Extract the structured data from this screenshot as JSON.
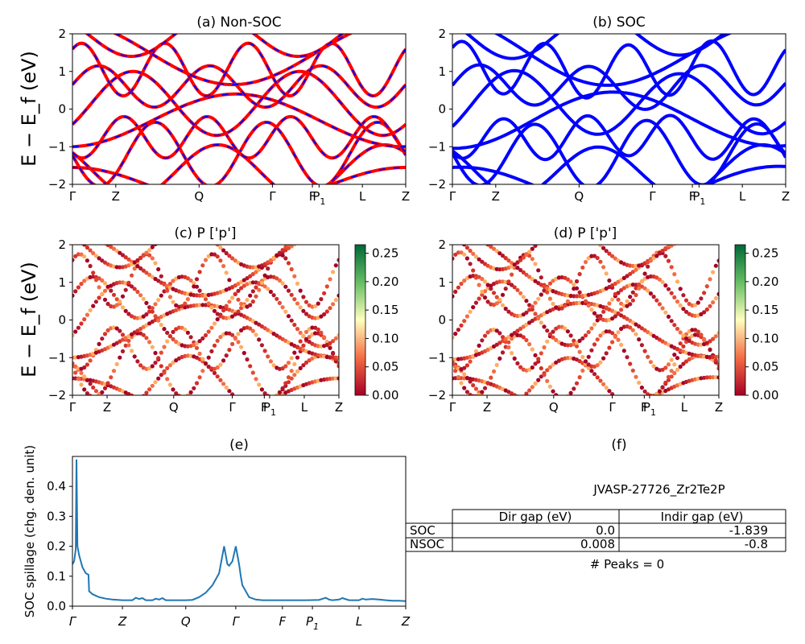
{
  "panels": {
    "a": {
      "title": "(a) Non-SOC",
      "ylabel": "E − E_f (eV)"
    },
    "b": {
      "title": "(b) SOC"
    },
    "c": {
      "title": "(c)  P ['p']",
      "ylabel": "E − E_f (eV)"
    },
    "d": {
      "title": "(d) P ['p']"
    },
    "e": {
      "title": "(e)",
      "ylabel": "SOC spillage (chg. den. unit)"
    },
    "f": {
      "title": "(f)"
    }
  },
  "kpath_labels": [
    "Γ",
    "Z",
    "Q",
    "Γ",
    "F",
    "P1",
    "L",
    "Z"
  ],
  "kpath_labels_e": [
    "Γ",
    "Z",
    "Q",
    "Γ",
    "F",
    "P1",
    "L",
    "Z"
  ],
  "band_yticks": [
    "−2",
    "−1",
    "0",
    "1",
    "2"
  ],
  "colorbar_ticks": [
    "0.00",
    "0.05",
    "0.10",
    "0.15",
    "0.20",
    "0.25"
  ],
  "spillage_yticks": [
    "0.0",
    "0.1",
    "0.2",
    "0.3",
    "0.4"
  ],
  "table": {
    "title": "JVASP-27726_Zr2Te2P",
    "headers": [
      "",
      "Dir gap (eV)",
      "Indir gap (eV)"
    ],
    "rows": [
      [
        "SOC",
        "0.0",
        "-1.839"
      ],
      [
        "NSOC",
        "0.008",
        "-0.8"
      ]
    ],
    "note": "# Peaks = 0"
  },
  "colors": {
    "nonsoc_red": "#ff0000",
    "soc_blue": "#0000ff",
    "spillage": "#1f77b4"
  },
  "chart_data": [
    {
      "type": "line",
      "panel": "e",
      "title": "(e)",
      "ylabel": "SOC spillage (chg. den. unit)",
      "ylim": [
        0,
        0.5
      ],
      "x_ticks": [
        "Γ",
        "Z",
        "Q",
        "Γ",
        "F",
        "P1",
        "L",
        "Z"
      ],
      "x_tick_positions": [
        0,
        0.15,
        0.34,
        0.49,
        0.63,
        0.72,
        0.86,
        1.0
      ],
      "series": [
        {
          "x": [
            0,
            0.005,
            0.01,
            0.012,
            0.015,
            0.02,
            0.03,
            0.04,
            0.048,
            0.05,
            0.06,
            0.08,
            0.1,
            0.12,
            0.15,
            0.18,
            0.19,
            0.2,
            0.21,
            0.22,
            0.23,
            0.24,
            0.25,
            0.26,
            0.27,
            0.28,
            0.3,
            0.32,
            0.34,
            0.36,
            0.38,
            0.4,
            0.42,
            0.44,
            0.455,
            0.465,
            0.47,
            0.48,
            0.49,
            0.5,
            0.505,
            0.51,
            0.52,
            0.53,
            0.55,
            0.57,
            0.6,
            0.63,
            0.66,
            0.7,
            0.74,
            0.76,
            0.77,
            0.78,
            0.8,
            0.81,
            0.83,
            0.86,
            0.87,
            0.88,
            0.9,
            0.92,
            0.94,
            0.96,
            0.98,
            1.0
          ],
          "y": [
            0.14,
            0.15,
            0.19,
            0.49,
            0.2,
            0.17,
            0.13,
            0.11,
            0.105,
            0.05,
            0.04,
            0.03,
            0.025,
            0.022,
            0.02,
            0.02,
            0.028,
            0.024,
            0.027,
            0.02,
            0.02,
            0.02,
            0.025,
            0.022,
            0.027,
            0.02,
            0.02,
            0.02,
            0.02,
            0.021,
            0.03,
            0.045,
            0.07,
            0.11,
            0.2,
            0.14,
            0.135,
            0.15,
            0.2,
            0.14,
            0.1,
            0.07,
            0.05,
            0.03,
            0.022,
            0.02,
            0.02,
            0.02,
            0.02,
            0.02,
            0.021,
            0.028,
            0.022,
            0.02,
            0.022,
            0.027,
            0.02,
            0.02,
            0.025,
            0.022,
            0.024,
            0.022,
            0.02,
            0.018,
            0.018,
            0.017
          ]
        }
      ]
    }
  ]
}
